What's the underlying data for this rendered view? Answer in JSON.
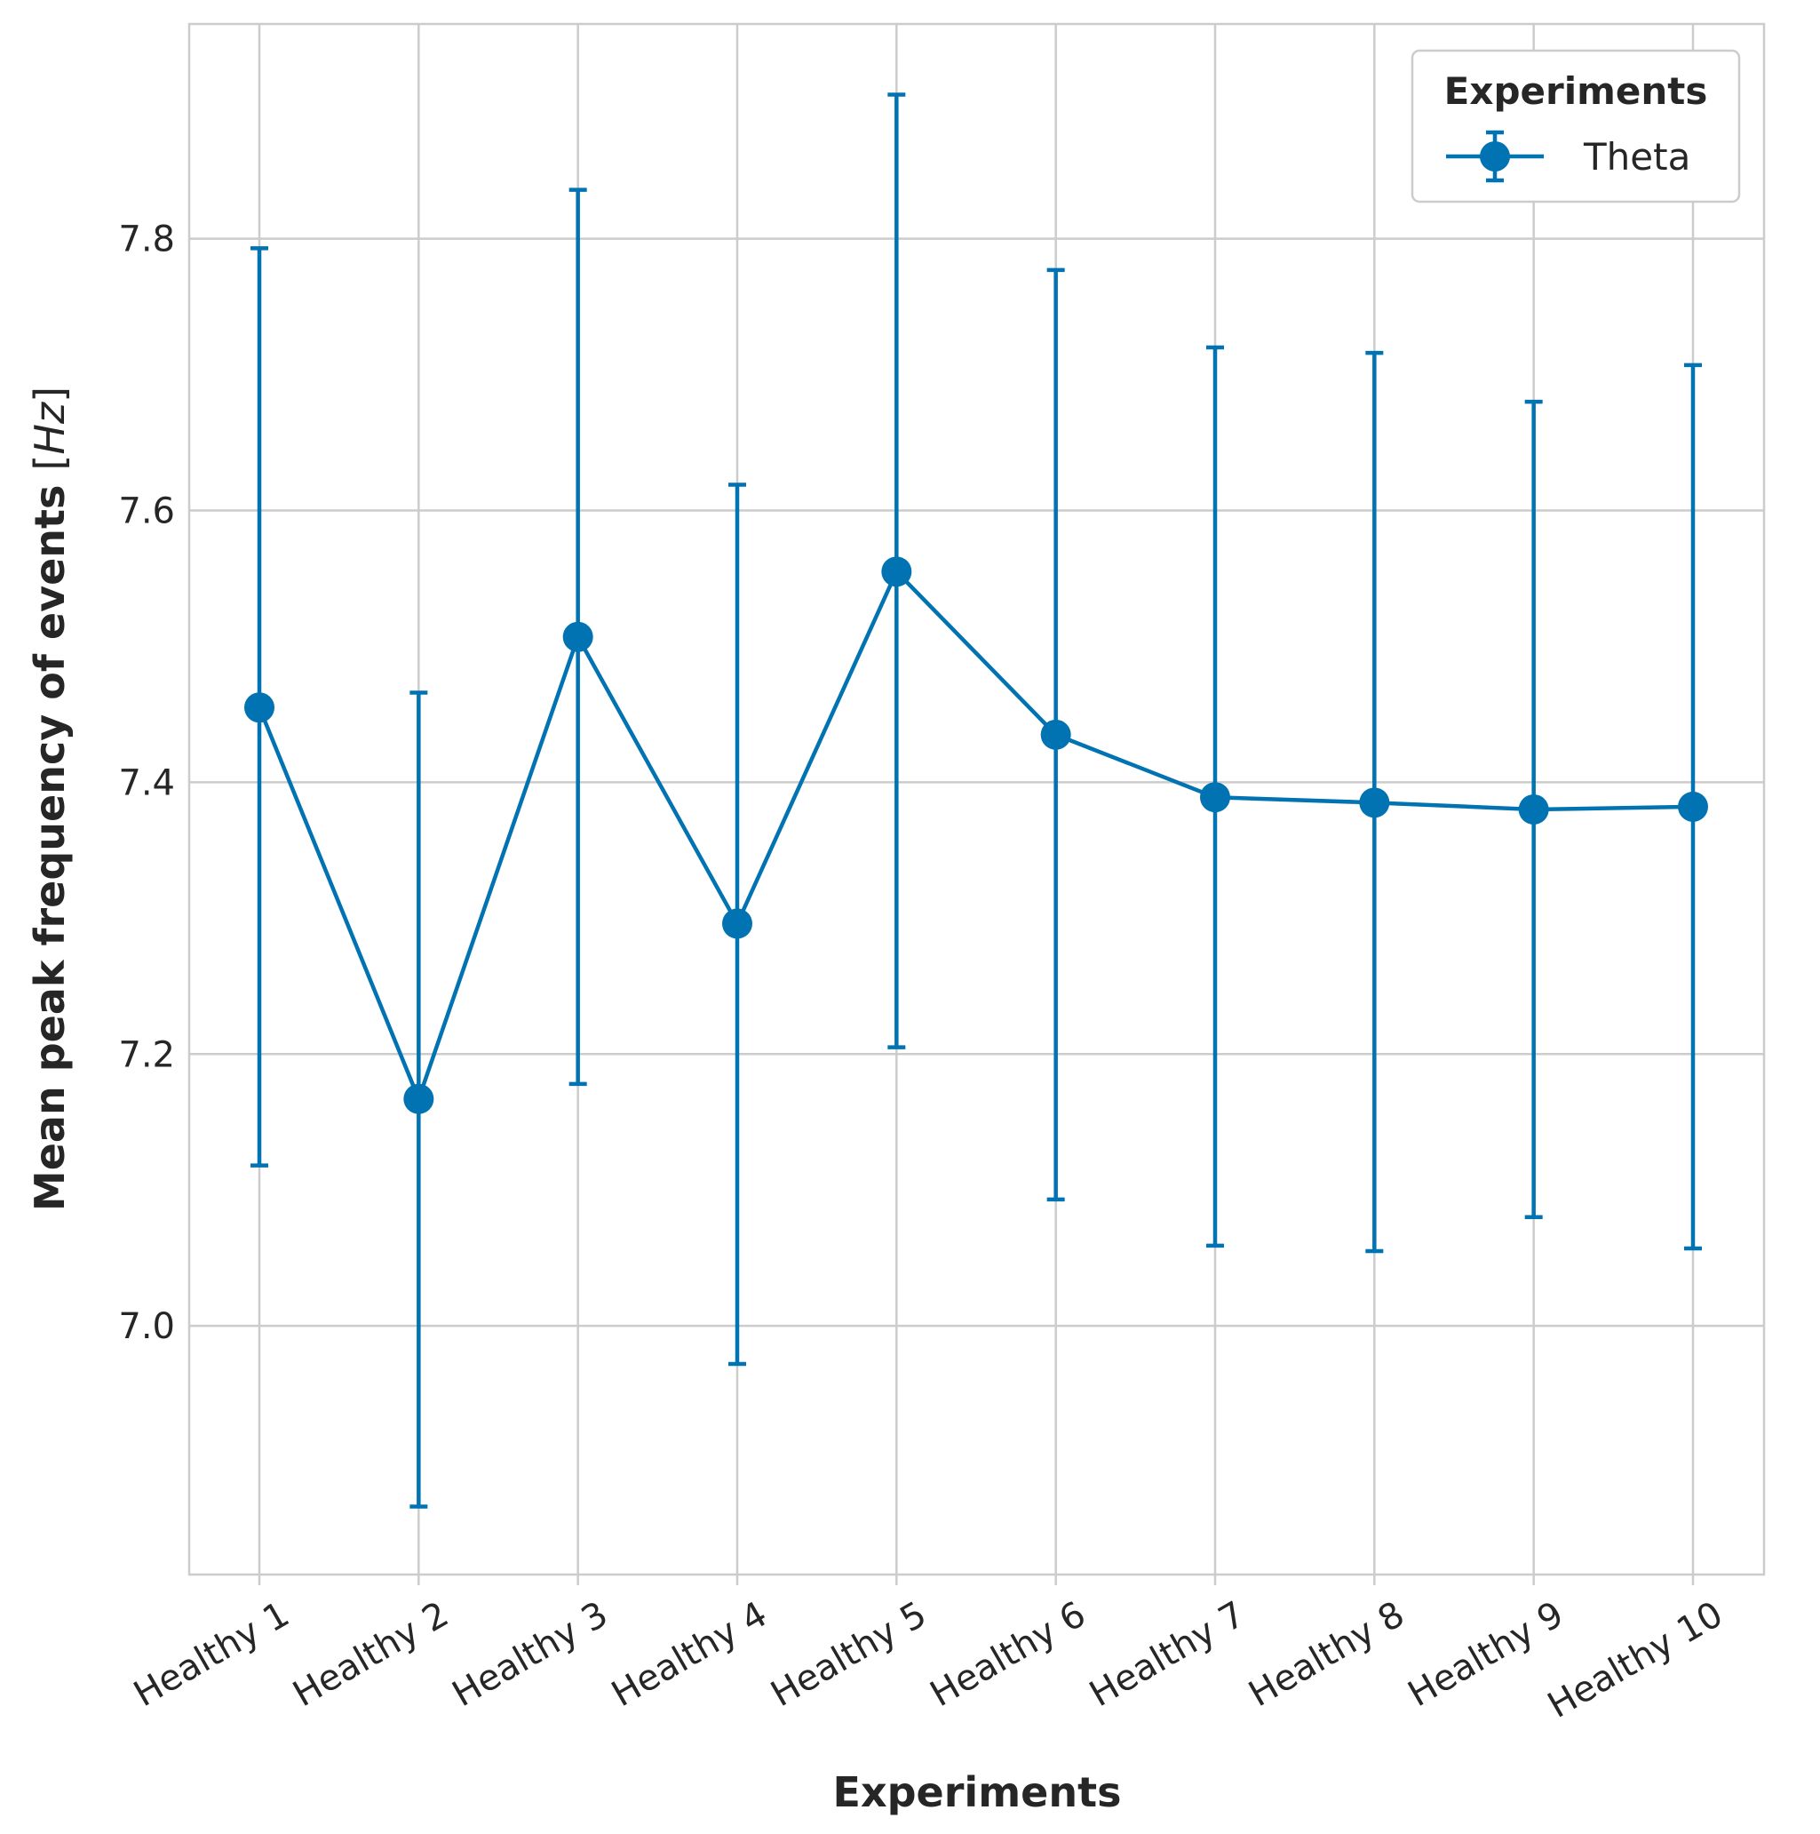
{
  "chart_data": {
    "type": "line",
    "categories": [
      "Healthy 1",
      "Healthy 2",
      "Healthy 3",
      "Healthy 4",
      "Healthy 5",
      "Healthy 6",
      "Healthy 7",
      "Healthy 8",
      "Healthy 9",
      "Healthy 10"
    ],
    "series": [
      {
        "name": "Theta",
        "values": [
          7.455,
          7.167,
          7.507,
          7.296,
          7.555,
          7.435,
          7.389,
          7.385,
          7.38,
          7.382
        ],
        "error_low": [
          7.118,
          6.867,
          7.178,
          6.972,
          7.205,
          7.093,
          7.059,
          7.055,
          7.08,
          7.057
        ],
        "error_high": [
          7.793,
          7.466,
          7.836,
          7.619,
          7.906,
          7.777,
          7.72,
          7.716,
          7.68,
          7.707
        ],
        "color": "#0173b2"
      }
    ],
    "xlabel": "Experiments",
    "ylabel": "Mean peak frequency of events [Hz]",
    "ylabel_parts": {
      "text": "Mean peak frequency of events ",
      "unit_open": "[",
      "unit": "Hz",
      "unit_close": "]"
    },
    "ylim": [
      6.817,
      7.958
    ],
    "yticks": [
      "7.0",
      "7.2",
      "7.4",
      "7.6",
      "7.8"
    ],
    "ytick_values": [
      7.0,
      7.2,
      7.4,
      7.6,
      7.8
    ],
    "grid": true,
    "legend": {
      "title": "Experiments",
      "placement": "top-right"
    },
    "colors": {
      "grid": "#cccccc",
      "series": "#0173b2",
      "text": "#262626"
    }
  }
}
